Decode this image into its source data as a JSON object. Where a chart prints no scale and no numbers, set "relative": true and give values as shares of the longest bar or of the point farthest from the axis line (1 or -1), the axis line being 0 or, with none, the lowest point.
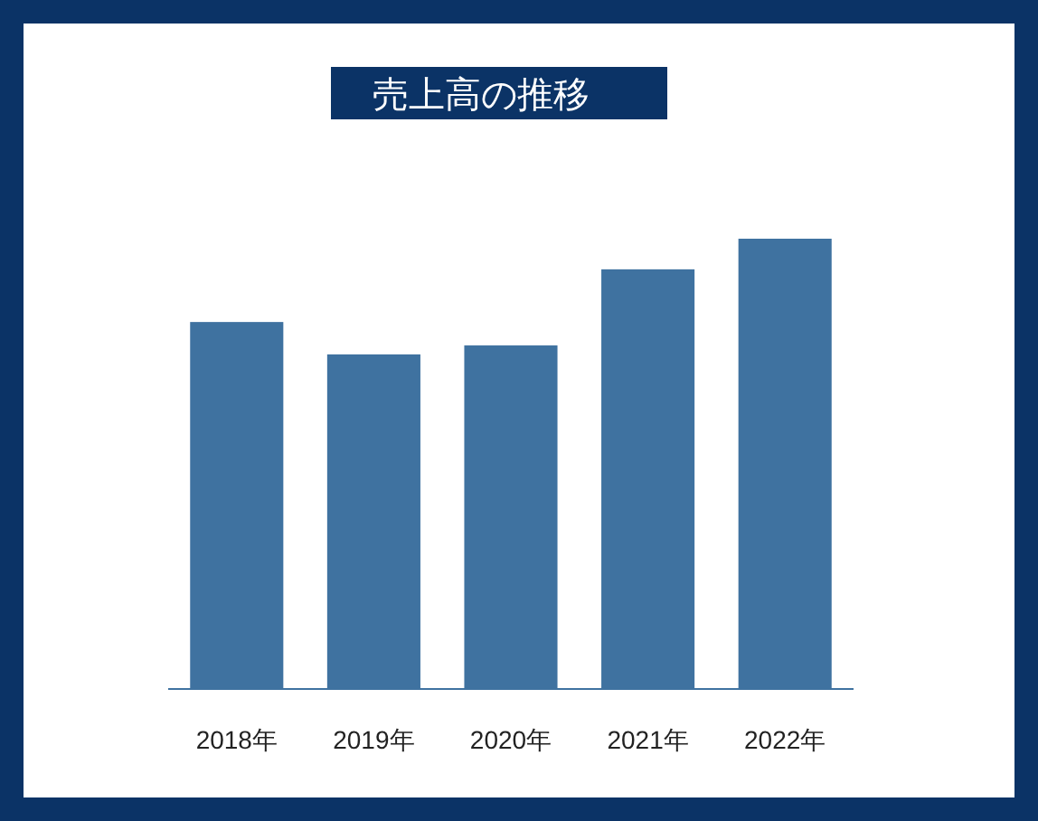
{
  "chart_data": {
    "type": "bar",
    "title": "売上高の推移",
    "categories": [
      "2018年",
      "2019年",
      "2020年",
      "2021年",
      "2022年"
    ],
    "values": [
      0.815,
      0.743,
      0.763,
      0.932,
      1
    ],
    "color": "#3f72a0",
    "relative": true
  }
}
